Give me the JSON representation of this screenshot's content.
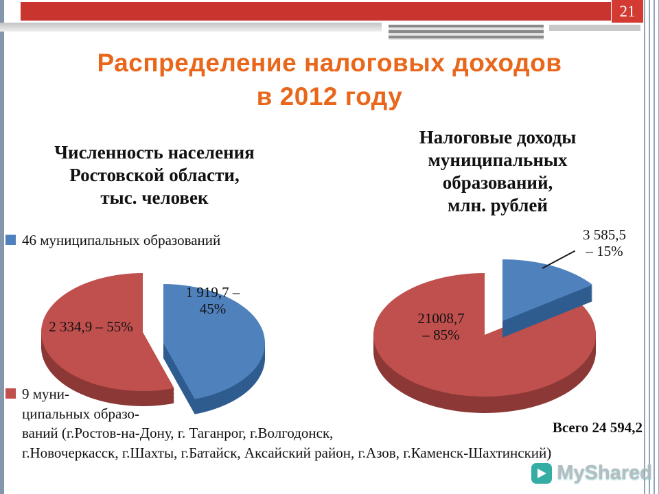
{
  "page": {
    "number": "21"
  },
  "title": {
    "text": "Распределение налоговых доходов\nв 2012 году",
    "color": "#e8671b"
  },
  "left_chart": {
    "heading": "Численность населения\nРостовской области,\nтыс. человек",
    "legend": "46 муниципальных образований",
    "label_blue": "1 919,7 –\n45%",
    "label_red": "2 334,9 – 55%"
  },
  "right_chart": {
    "heading": "Налоговые доходы\nмуниципальных\nобразований,\nмлн. рублей",
    "label_blue": "3 585,5\n– 15%",
    "label_red": "21008,7\n– 85%"
  },
  "bottom": {
    "legend": "9 муни-\nципальных образо-\nваний (г.Ростов-на-Дону, г. Таганрог, г.Волгодонск,\nг.Новочеркасск, г.Шахты, г.Батайск, Аксайский район, г.Азов, г.Каменск-Шахтинский)",
    "total": "Всего 24 594,2"
  },
  "watermark": {
    "text": "MyShared"
  },
  "colors": {
    "top_bar_red": "#c9342f",
    "page_badge_red": "#d23a32",
    "title_orange": "#e8671b",
    "pie_blue": "#4f81bd",
    "pie_red": "#c0504d",
    "watermark_teal": "#2aa9a0"
  },
  "chart_data": [
    {
      "type": "pie",
      "title": "Численность населения Ростовской области, тыс. человек",
      "labels": [
        "46 муниципальных образований",
        "9 муниципальных образований"
      ],
      "values": [
        1919.7,
        2334.9
      ],
      "percents": [
        45,
        55
      ],
      "value_labels": [
        "1 919,7 – 45%",
        "2 334,9 – 55%"
      ],
      "colors": [
        "#4f81bd",
        "#c0504d"
      ],
      "colors_dark": [
        "#2f5c8f",
        "#8c3836"
      ],
      "start_angle_deg": 0,
      "legend_position": "left",
      "style": "3d-exploded"
    },
    {
      "type": "pie",
      "title": "Налоговые доходы муниципальных образований, млн. рублей",
      "labels": [
        "46 муниципальных образований",
        "9 муниципальных образований"
      ],
      "values": [
        3585.5,
        21008.7
      ],
      "percents": [
        15,
        85
      ],
      "value_labels": [
        "3 585,5 – 15%",
        "21008,7 – 85%"
      ],
      "total": 24594.2,
      "total_label": "Всего 24 594,2",
      "colors": [
        "#4f81bd",
        "#c0504d"
      ],
      "colors_dark": [
        "#2f5c8f",
        "#8c3836"
      ],
      "start_angle_deg": 0,
      "legend_position": "left",
      "style": "3d-exploded"
    }
  ]
}
